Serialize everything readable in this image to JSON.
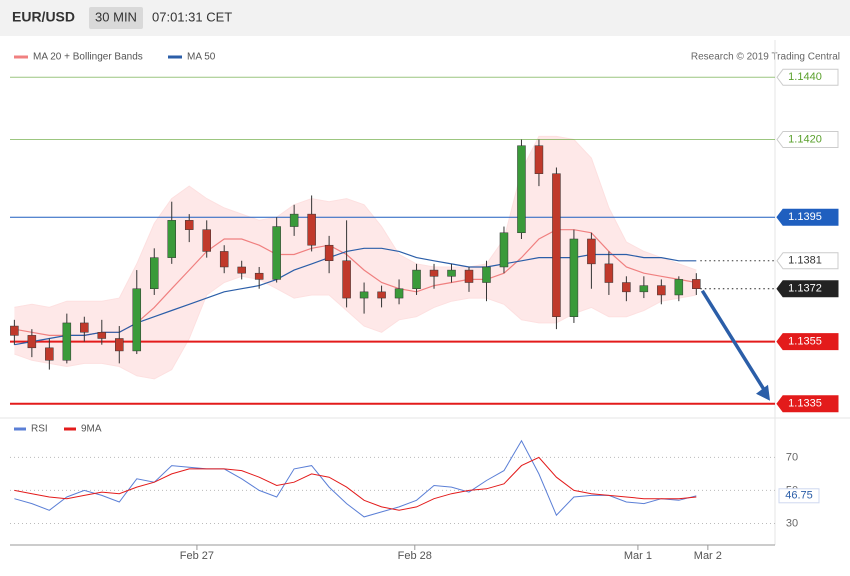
{
  "header": {
    "symbol": "EUR/USD",
    "interval": "30 MIN",
    "time": "07:01:31 CET"
  },
  "credit": "Research © 2019 Trading Central",
  "chart_data": [
    {
      "type": "candlestick",
      "xlim": [
        -0.25,
        43.5
      ],
      "ylim": [
        1.1333,
        1.1452
      ],
      "candles": {
        "up_color": "#3a9a3a",
        "down_color": "#c0392b",
        "open": [
          1.136,
          1.1357,
          1.1353,
          1.1349,
          1.1361,
          1.1358,
          1.1356,
          1.1352,
          1.1372,
          1.1382,
          1.1394,
          1.1391,
          1.1384,
          1.1379,
          1.1377,
          1.1375,
          1.1392,
          1.1396,
          1.1386,
          1.1381,
          1.1369,
          1.1371,
          1.1369,
          1.1372,
          1.1378,
          1.1376,
          1.1378,
          1.1374,
          1.1379,
          1.139,
          1.1418,
          1.1409,
          1.1363,
          1.1388,
          1.138,
          1.1374,
          1.1371,
          1.1373,
          1.137,
          1.1375
        ],
        "high": [
          1.1362,
          1.1359,
          1.1356,
          1.1364,
          1.1363,
          1.1362,
          1.136,
          1.1378,
          1.1385,
          1.14,
          1.1396,
          1.1394,
          1.1386,
          1.1381,
          1.1379,
          1.1395,
          1.1399,
          1.1402,
          1.1389,
          1.1394,
          1.1374,
          1.1373,
          1.1375,
          1.138,
          1.138,
          1.138,
          1.1379,
          1.1381,
          1.1392,
          1.142,
          1.142,
          1.1411,
          1.1391,
          1.139,
          1.1384,
          1.1376,
          1.1376,
          1.1375,
          1.1376,
          1.1377
        ],
        "low": [
          1.1354,
          1.135,
          1.1346,
          1.1348,
          1.1355,
          1.1354,
          1.1348,
          1.1351,
          1.137,
          1.138,
          1.1387,
          1.1382,
          1.1377,
          1.1375,
          1.1372,
          1.1374,
          1.1389,
          1.1384,
          1.1377,
          1.1366,
          1.1364,
          1.1366,
          1.1367,
          1.137,
          1.1372,
          1.1374,
          1.1371,
          1.1368,
          1.1377,
          1.1388,
          1.1405,
          1.1359,
          1.1361,
          1.1372,
          1.137,
          1.1368,
          1.1369,
          1.1367,
          1.1368,
          1.137
        ],
        "close": [
          1.1357,
          1.1353,
          1.1349,
          1.1361,
          1.1358,
          1.1356,
          1.1352,
          1.1372,
          1.1382,
          1.1394,
          1.1391,
          1.1384,
          1.1379,
          1.1377,
          1.1375,
          1.1392,
          1.1396,
          1.1386,
          1.1381,
          1.1369,
          1.1371,
          1.1369,
          1.1372,
          1.1378,
          1.1376,
          1.1378,
          1.1374,
          1.1379,
          1.139,
          1.1418,
          1.1409,
          1.1363,
          1.1388,
          1.138,
          1.1374,
          1.1371,
          1.1373,
          1.137,
          1.1375,
          1.1372
        ]
      },
      "series": [
        {
          "name": "MA 20 + Bollinger Bands",
          "color": "#f08080",
          "band_color": "#fde0e0",
          "values": [
            1.1359,
            1.1358,
            1.1357,
            1.1357,
            1.1357,
            1.1358,
            1.1358,
            1.1361,
            1.1366,
            1.1372,
            1.1378,
            1.1384,
            1.1388,
            1.1388,
            1.1386,
            1.1383,
            1.1383,
            1.1385,
            1.1386,
            1.1383,
            1.1378,
            1.1374,
            1.1372,
            1.1371,
            1.1373,
            1.1374,
            1.1375,
            1.1375,
            1.1377,
            1.1382,
            1.1388,
            1.1391,
            1.1391,
            1.139,
            1.1384,
            1.1379,
            1.1377,
            1.1376,
            1.1375,
            1.1374
          ],
          "upper": [
            1.1366,
            1.1367,
            1.1366,
            1.1368,
            1.1368,
            1.1368,
            1.1369,
            1.138,
            1.1393,
            1.1401,
            1.1405,
            1.1401,
            1.1398,
            1.1396,
            1.1394,
            1.1395,
            1.1399,
            1.1401,
            1.14,
            1.1401,
            1.1399,
            1.1392,
            1.1383,
            1.138,
            1.1379,
            1.1379,
            1.1379,
            1.138,
            1.1388,
            1.141,
            1.1421,
            1.1421,
            1.142,
            1.1414,
            1.1398,
            1.1387,
            1.1384,
            1.1382,
            1.138,
            1.1378
          ],
          "lower": [
            1.1351,
            1.1349,
            1.1348,
            1.1347,
            1.1348,
            1.1348,
            1.1347,
            1.1344,
            1.1343,
            1.1346,
            1.1356,
            1.137,
            1.1374,
            1.1376,
            1.1375,
            1.1372,
            1.1369,
            1.137,
            1.137,
            1.1365,
            1.136,
            1.1358,
            1.1362,
            1.1363,
            1.1366,
            1.1368,
            1.1369,
            1.1369,
            1.1367,
            1.1362,
            1.1361,
            1.1361,
            1.1364,
            1.1366,
            1.1363,
            1.1363,
            1.1365,
            1.1368,
            1.1369,
            1.137
          ]
        },
        {
          "name": "MA 50",
          "color": "#2b5ea8",
          "values": [
            1.1354,
            1.1355,
            1.1356,
            1.1357,
            1.1357,
            1.1358,
            1.1358,
            1.1361,
            1.1363,
            1.1365,
            1.1367,
            1.1369,
            1.1371,
            1.1372,
            1.1373,
            1.1375,
            1.1378,
            1.138,
            1.1382,
            1.1384,
            1.1385,
            1.1385,
            1.1384,
            1.1382,
            1.1381,
            1.138,
            1.1379,
            1.1379,
            1.138,
            1.1381,
            1.1382,
            1.1382,
            1.1382,
            1.1383,
            1.1383,
            1.1383,
            1.1382,
            1.1382,
            1.1381,
            1.1381
          ]
        }
      ],
      "levels": [
        {
          "value": 1.144,
          "label": "1.1440",
          "color": "#5aa02c",
          "style": "solid",
          "box": "outline"
        },
        {
          "value": 1.142,
          "label": "1.1420",
          "color": "#5aa02c",
          "style": "solid",
          "box": "outline"
        },
        {
          "value": 1.1395,
          "label": "1.1395",
          "color": "#1f5fbf",
          "style": "solid",
          "box": "filled"
        },
        {
          "value": 1.1381,
          "label": "1.1381",
          "color": "#333333",
          "style": "dotted",
          "box": "outline"
        },
        {
          "value": 1.1372,
          "label": "1.1372",
          "color": "#222222",
          "style": "dotted",
          "box": "filled"
        },
        {
          "value": 1.1355,
          "label": "1.1355",
          "color": "#e31b1b",
          "style": "solid",
          "box": "filled"
        },
        {
          "value": 1.1335,
          "label": "1.1335",
          "color": "#e31b1b",
          "style": "solid",
          "box": "filled"
        }
      ]
    },
    {
      "type": "line",
      "ylim": [
        20,
        92
      ],
      "yticks": [
        30,
        50,
        70
      ],
      "xticks": [
        {
          "value": 10.44,
          "label": "Feb 27"
        },
        {
          "value": 22.9,
          "label": "Feb 28"
        },
        {
          "value": 35.66,
          "label": "Mar 1"
        },
        {
          "value": 39.66,
          "label": "Mar 2"
        }
      ],
      "series": [
        {
          "name": "RSI",
          "color": "#5b7fd6",
          "values": [
            45,
            42,
            38,
            46,
            50,
            47,
            43,
            57,
            55,
            65,
            64,
            63,
            63,
            57,
            50,
            46,
            63,
            65,
            52,
            42,
            34,
            37,
            40,
            44,
            53,
            52,
            49,
            56,
            62,
            80,
            60,
            35,
            46,
            47,
            47,
            43,
            42,
            45,
            44,
            46.75
          ]
        },
        {
          "name": "9MA",
          "color": "#e31b1b",
          "values": [
            50,
            48,
            46,
            45,
            47,
            49,
            48,
            52,
            55,
            60,
            63,
            63,
            63,
            62,
            58,
            53,
            55,
            60,
            58,
            52,
            44,
            40,
            38,
            40,
            45,
            48,
            50,
            51,
            54,
            65,
            70,
            58,
            50,
            48,
            47,
            46,
            45,
            45,
            45,
            46
          ]
        }
      ]
    }
  ]
}
